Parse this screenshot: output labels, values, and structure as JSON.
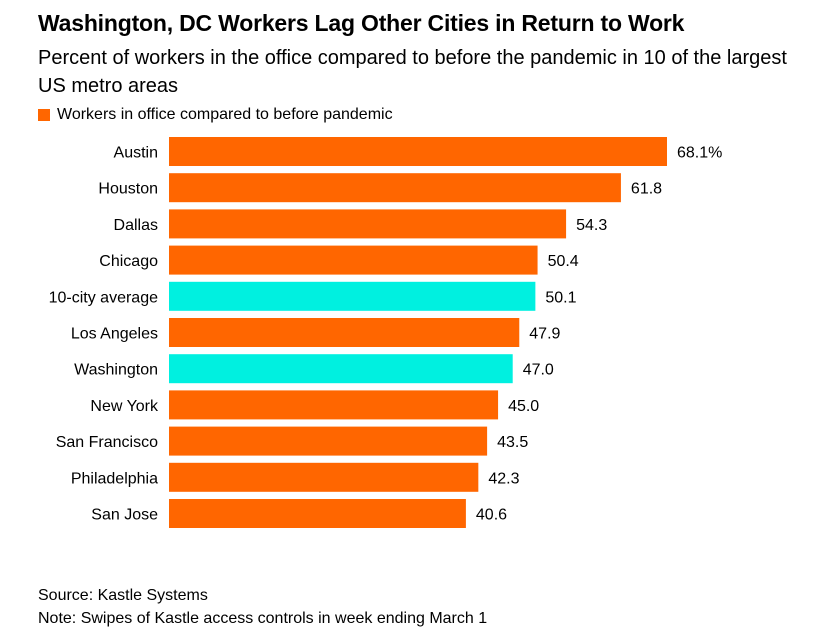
{
  "title": "Washington, DC Workers Lag Other Cities in Return to Work",
  "subtitle": "Percent of workers in the office compared to before the pandemic in 10 of the largest US metro areas",
  "colors": {
    "default": "#ff6600",
    "highlight": "#00f0e0"
  },
  "chart_data": {
    "type": "bar",
    "orientation": "horizontal",
    "title": "Washington, DC Workers Lag Other Cities in Return to Work",
    "subtitle": "Percent of workers in the office compared to before the pandemic in 10 of the largest US metro areas",
    "legend": [
      "Workers in office compared to before pandemic"
    ],
    "legend_position": "top-left",
    "categories": [
      "Austin",
      "Houston",
      "Dallas",
      "Chicago",
      "10-city average",
      "Los Angeles",
      "Washington",
      "New York",
      "San Francisco",
      "Philadelphia",
      "San Jose"
    ],
    "values": [
      68.1,
      61.8,
      54.3,
      50.4,
      50.1,
      47.9,
      47.0,
      45.0,
      43.5,
      42.3,
      40.6
    ],
    "value_labels": [
      "68.1%",
      "61.8",
      "54.3",
      "50.4",
      "50.1",
      "47.9",
      "47.0",
      "45.0",
      "43.5",
      "42.3",
      "40.6"
    ],
    "highlighted": [
      "10-city average",
      "Washington"
    ],
    "xlim": [
      0,
      68.1
    ],
    "grid": false
  },
  "footer": {
    "source": "Source: Kastle Systems",
    "note": "Note: Swipes of Kastle access controls in week ending March 1"
  }
}
